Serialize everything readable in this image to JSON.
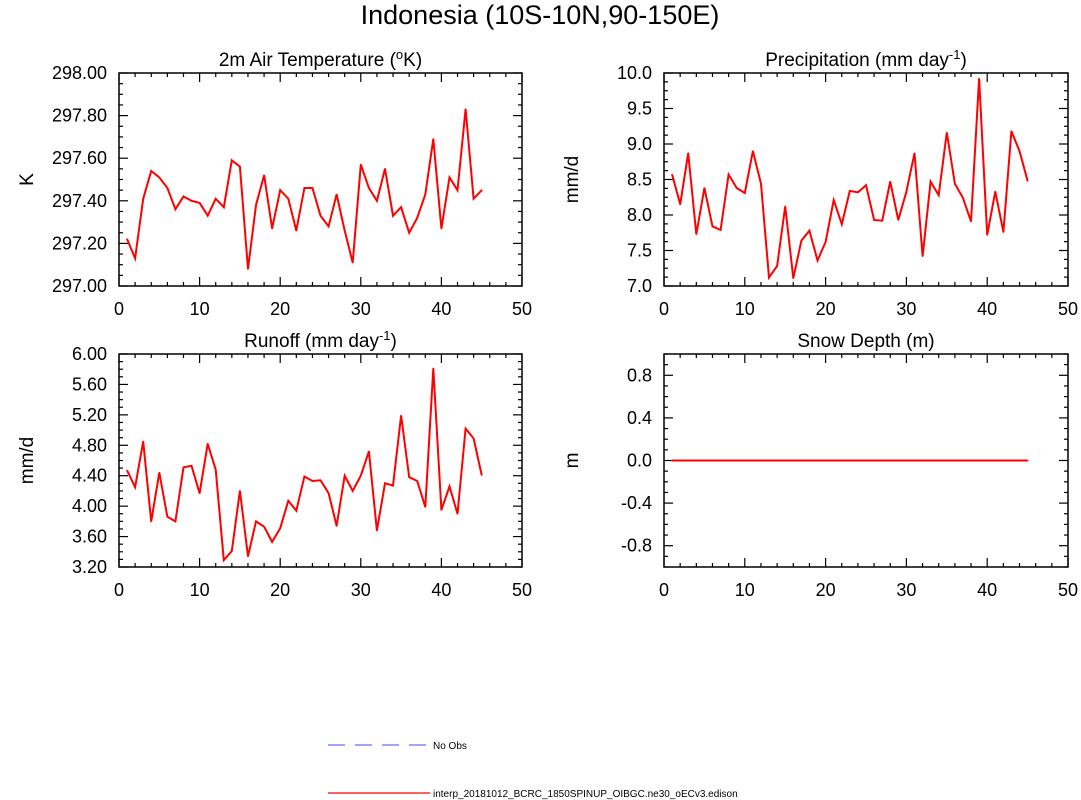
{
  "figure": {
    "title": "Indonesia (10S-10N,90-150E)"
  },
  "colors": {
    "model": "#ff0000",
    "obs": "#6b6bff",
    "axis": "#000000"
  },
  "legend": {
    "items": [
      {
        "label": "No Obs",
        "style": "dashed",
        "color": "#6b6bff"
      },
      {
        "label": "interp_20181012_BCRC_1850SPINUP_OIBGC.ne30_oECv3.edison",
        "style": "solid",
        "color": "#ff0000"
      }
    ]
  },
  "chart_data": [
    {
      "type": "line",
      "title": "2m Air Temperature (",
      "title_sup": "o",
      "title_after": "K)",
      "xlabel": "",
      "ylabel": "K",
      "xlim": [
        0,
        50
      ],
      "ylim": [
        297.0,
        298.0
      ],
      "xticks": [
        0,
        10,
        20,
        30,
        40,
        50
      ],
      "yticks": [
        297.0,
        297.2,
        297.4,
        297.6,
        297.8,
        298.0
      ],
      "ytick_labels": [
        "297.00",
        "297.20",
        "297.40",
        "297.60",
        "297.80",
        "298.00"
      ],
      "series": [
        {
          "x": [
            1,
            2,
            3,
            4,
            5,
            6,
            7,
            8,
            9,
            10,
            11,
            12,
            13,
            14,
            15,
            16,
            17,
            18,
            19,
            20,
            21,
            22,
            23,
            24,
            25,
            26,
            27,
            28,
            29,
            30,
            31,
            32,
            33,
            34,
            35,
            36,
            37,
            38,
            39,
            40,
            41,
            42,
            43,
            44,
            45
          ],
          "values": [
            297.22,
            297.13,
            297.41,
            297.54,
            297.51,
            297.46,
            297.36,
            297.42,
            297.4,
            297.39,
            297.33,
            297.41,
            297.37,
            297.59,
            297.56,
            297.08,
            297.38,
            297.52,
            297.27,
            297.45,
            297.41,
            297.26,
            297.46,
            297.46,
            297.33,
            297.28,
            297.43,
            297.26,
            297.11,
            297.57,
            297.46,
            297.4,
            297.55,
            297.33,
            297.37,
            297.25,
            297.32,
            297.43,
            297.69,
            297.27,
            297.51,
            297.45,
            297.83,
            297.41,
            297.45
          ]
        }
      ]
    },
    {
      "type": "line",
      "title": "Precipitation (mm day",
      "title_sup": "-1",
      "title_after": ")",
      "xlabel": "",
      "ylabel": "mm/d",
      "xlim": [
        0,
        50
      ],
      "ylim": [
        7.0,
        10.0
      ],
      "xticks": [
        0,
        10,
        20,
        30,
        40,
        50
      ],
      "yticks": [
        7.0,
        7.5,
        8.0,
        8.5,
        9.0,
        9.5,
        10.0
      ],
      "ytick_labels": [
        "7.0",
        "7.5",
        "8.0",
        "8.5",
        "9.0",
        "9.5",
        "10.0"
      ],
      "series": [
        {
          "x": [
            1,
            2,
            3,
            4,
            5,
            6,
            7,
            8,
            9,
            10,
            11,
            12,
            13,
            14,
            15,
            16,
            17,
            18,
            19,
            20,
            21,
            22,
            23,
            24,
            25,
            26,
            27,
            28,
            29,
            30,
            31,
            32,
            33,
            34,
            35,
            36,
            37,
            38,
            39,
            40,
            41,
            42,
            43,
            44,
            45
          ],
          "values": [
            8.57,
            8.15,
            8.87,
            7.73,
            8.38,
            7.84,
            7.79,
            8.57,
            8.38,
            8.31,
            8.9,
            8.44,
            7.12,
            7.28,
            8.12,
            7.11,
            7.64,
            7.78,
            7.36,
            7.62,
            8.21,
            7.87,
            8.34,
            8.32,
            8.42,
            7.93,
            7.92,
            8.47,
            7.93,
            8.33,
            8.87,
            7.42,
            8.47,
            8.28,
            9.16,
            8.44,
            8.24,
            7.91,
            9.92,
            7.72,
            8.33,
            7.76,
            9.18,
            8.9,
            8.48
          ]
        }
      ]
    },
    {
      "type": "line",
      "title": "Runoff (mm day",
      "title_sup": "-1",
      "title_after": ")",
      "xlabel": "",
      "ylabel": "mm/d",
      "xlim": [
        0,
        50
      ],
      "ylim": [
        3.2,
        6.0
      ],
      "xticks": [
        0,
        10,
        20,
        30,
        40,
        50
      ],
      "yticks": [
        3.2,
        3.6,
        4.0,
        4.4,
        4.8,
        5.2,
        5.6,
        6.0
      ],
      "ytick_labels": [
        "3.20",
        "3.60",
        "4.00",
        "4.40",
        "4.80",
        "5.20",
        "5.60",
        "6.00"
      ],
      "series": [
        {
          "x": [
            1,
            2,
            3,
            4,
            5,
            6,
            7,
            8,
            9,
            10,
            11,
            12,
            13,
            14,
            15,
            16,
            17,
            18,
            19,
            20,
            21,
            22,
            23,
            24,
            25,
            26,
            27,
            28,
            29,
            30,
            31,
            32,
            33,
            34,
            35,
            36,
            37,
            38,
            39,
            40,
            41,
            42,
            43,
            44,
            45
          ],
          "values": [
            4.47,
            4.25,
            4.85,
            3.8,
            4.44,
            3.86,
            3.8,
            4.51,
            4.53,
            4.17,
            4.82,
            4.48,
            3.29,
            3.41,
            4.2,
            3.34,
            3.8,
            3.73,
            3.53,
            3.71,
            4.07,
            3.94,
            4.39,
            4.33,
            4.34,
            4.17,
            3.74,
            4.4,
            4.2,
            4.4,
            4.72,
            3.68,
            4.3,
            4.27,
            5.19,
            4.38,
            4.33,
            3.99,
            5.81,
            3.95,
            4.26,
            3.9,
            5.02,
            4.89,
            4.41
          ]
        }
      ]
    },
    {
      "type": "line",
      "title": "Snow Depth (m)",
      "title_sup": "",
      "title_after": "",
      "xlabel": "",
      "ylabel": "m",
      "xlim": [
        0,
        50
      ],
      "ylim": [
        -1.0,
        1.0
      ],
      "xticks": [
        0,
        10,
        20,
        30,
        40,
        50
      ],
      "yticks": [
        -0.8,
        -0.4,
        0.0,
        0.4,
        0.8
      ],
      "ytick_labels": [
        "-0.8",
        "-0.4",
        "0.0",
        "0.4",
        "0.8"
      ],
      "series": [
        {
          "x": [
            1,
            2,
            3,
            4,
            5,
            6,
            7,
            8,
            9,
            10,
            11,
            12,
            13,
            14,
            15,
            16,
            17,
            18,
            19,
            20,
            21,
            22,
            23,
            24,
            25,
            26,
            27,
            28,
            29,
            30,
            31,
            32,
            33,
            34,
            35,
            36,
            37,
            38,
            39,
            40,
            41,
            42,
            43,
            44,
            45
          ],
          "values": [
            0,
            0,
            0,
            0,
            0,
            0,
            0,
            0,
            0,
            0,
            0,
            0,
            0,
            0,
            0,
            0,
            0,
            0,
            0,
            0,
            0,
            0,
            0,
            0,
            0,
            0,
            0,
            0,
            0,
            0,
            0,
            0,
            0,
            0,
            0,
            0,
            0,
            0,
            0,
            0,
            0,
            0,
            0,
            0,
            0
          ]
        }
      ]
    }
  ]
}
